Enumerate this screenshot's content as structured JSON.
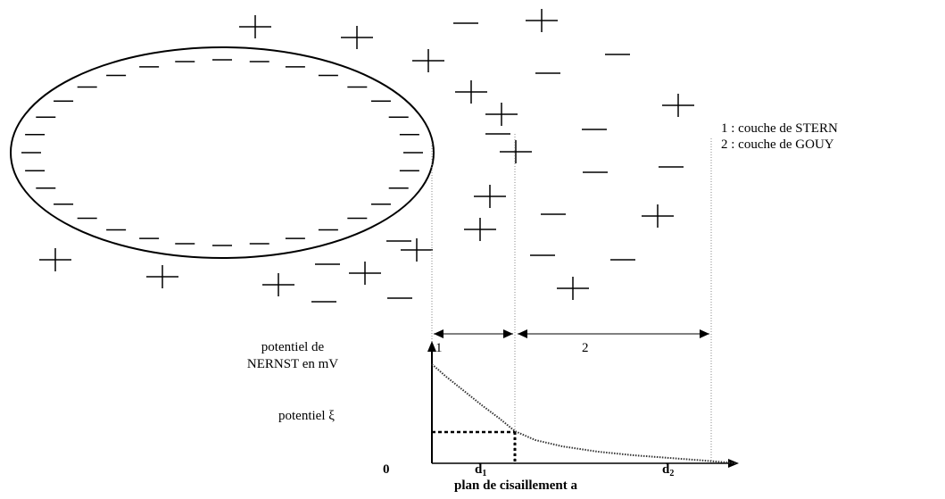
{
  "legend": {
    "line1": "1 : couche de STERN",
    "line2": "2 : couche de GOUY"
  },
  "zone_labels": {
    "stern": "1",
    "gouy": "2"
  },
  "graph": {
    "ylabel_line1": "potentiel de",
    "ylabel_line2": "NERNST en mV",
    "zeta_label": "potentiel  ξ",
    "origin": "0",
    "d1_main": "d",
    "d1_sub": "1",
    "d2_main": "d",
    "d2_sub": "2",
    "shear_plane": "plan de cisaillement a"
  },
  "particle": {
    "surface_charge": "negative",
    "charge_sign": "−"
  },
  "ions": {
    "positive_sign": "+",
    "negative_sign": "−"
  }
}
